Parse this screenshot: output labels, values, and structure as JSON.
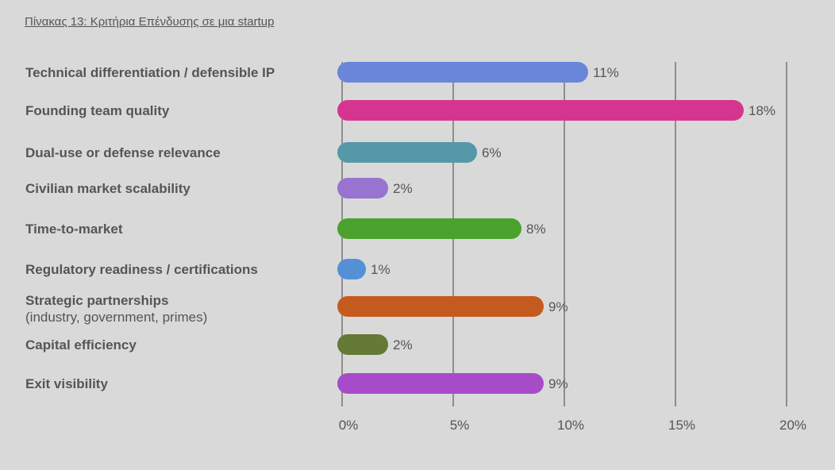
{
  "caption": "Πίνακας 13: Κριτήρια Επένδυσης σε μια startup",
  "chart_data": {
    "type": "bar",
    "orientation": "horizontal",
    "categories": [
      [
        "Technical differentiation / defensible IP"
      ],
      [
        "Founding team quality"
      ],
      [
        "Dual-use or defense relevance"
      ],
      [
        "Civilian market scalability"
      ],
      [
        "Time-to-market"
      ],
      [
        "Regulatory readiness / certifications"
      ],
      [
        "Strategic partnerships",
        "(industry, government, primes)"
      ],
      [
        "Capital efficiency"
      ],
      [
        "Exit visibility"
      ]
    ],
    "values": [
      11,
      18,
      6,
      2,
      8,
      1,
      9,
      2,
      9
    ],
    "value_labels": [
      "11%",
      "18%",
      "6%",
      "2%",
      "8%",
      "1%",
      "9%",
      "2%",
      "9%"
    ],
    "colors": [
      "#6a86d8",
      "#d6358f",
      "#5599a8",
      "#9873cf",
      "#4aa22d",
      "#5490d6",
      "#c55a1e",
      "#657a36",
      "#a84bc9"
    ],
    "xlim": [
      0,
      20
    ],
    "xticks": [
      0,
      5,
      10,
      15,
      20
    ],
    "xtick_labels": [
      "0%",
      "5%",
      "10%",
      "15%",
      "20%"
    ],
    "grid": true,
    "legend": "none"
  }
}
